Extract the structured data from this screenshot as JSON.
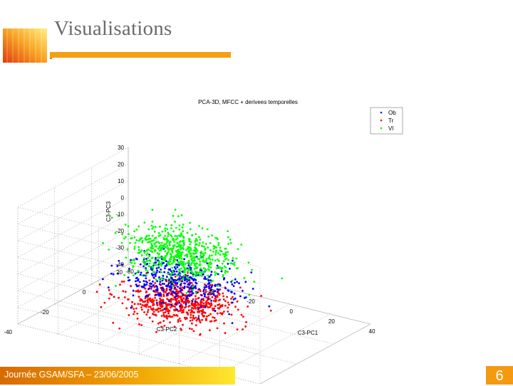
{
  "slide": {
    "title": "Visualisations",
    "footer": "Journée GSAM/SFA – 23/06/2005",
    "page_number": "6",
    "accent_color": "#f5a010"
  },
  "chart_data": {
    "type": "scatter",
    "title": "PCA-3D, MFCC + derivees temporelles",
    "xlabel": "C3-PC1",
    "ylabel": "C3-PC2",
    "zlabel": "C3-PC3",
    "xlim": [
      -80,
      40
    ],
    "ylim": [
      -40,
      20
    ],
    "zlim": [
      -40,
      30
    ],
    "x_ticks": [
      "-80",
      "-60",
      "-40",
      "-20",
      "0",
      "20",
      "40"
    ],
    "y_ticks": [
      "-40",
      "-20",
      "0",
      "20"
    ],
    "z_ticks": [
      "-40",
      "-30",
      "-20",
      "-10",
      "0",
      "10",
      "20",
      "30"
    ],
    "grid": true,
    "legend_position": "top-right",
    "series": [
      {
        "name": "Ob",
        "color": "#0000ff",
        "z_center": -15,
        "z_spread": 9
      },
      {
        "name": "Tr",
        "color": "#ff0000",
        "z_center": -28,
        "z_spread": 9
      },
      {
        "name": "Vl",
        "color": "#00ff00",
        "z_center": 2,
        "z_spread": 11
      }
    ]
  }
}
